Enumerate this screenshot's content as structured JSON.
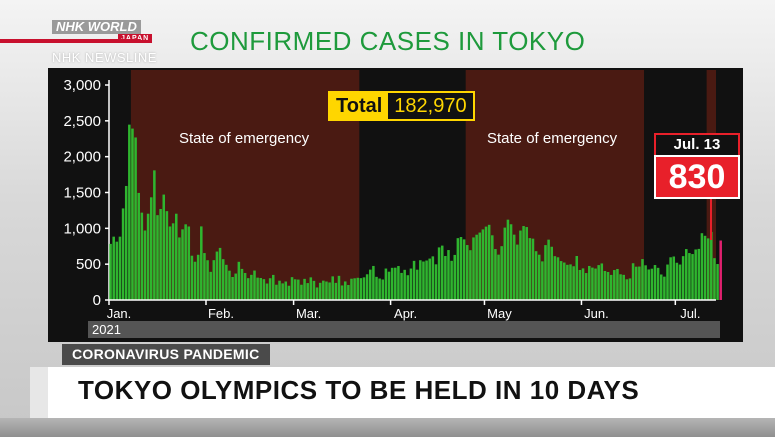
{
  "broadcaster": {
    "logo_text": "NHK WORLD",
    "logo_sub": "JAPAN",
    "program": "NHK NEWSLINE"
  },
  "total": {
    "label": "Total",
    "value": "182,970"
  },
  "annotations": {
    "emergency_1": "State of emergency",
    "emergency_2": "State of emergency"
  },
  "callout": {
    "date": "Jul. 13",
    "value": "830"
  },
  "topic": "CORONAVIRUS PANDEMIC",
  "headline": "TOKYO OLYMPICS TO BE HELD IN 10 DAYS",
  "colors": {
    "bar": "#2fb52f",
    "bar_highlight": "#e0206e",
    "emergency_shade": "#4a1a12",
    "title": "#1e9a3c",
    "callout": "#e8202a"
  },
  "chart_data": {
    "type": "bar",
    "title": "CONFIRMED CASES IN TOKYO",
    "year_label": "2021",
    "ylim": [
      0,
      3000
    ],
    "y_ticks": [
      "3,000",
      "2,500",
      "2,000",
      "1,500",
      "1,000",
      "500",
      "0"
    ],
    "x_ticks": [
      "Jan.",
      "Feb.",
      "Mar.",
      "Apr.",
      "May",
      "Jun.",
      "Jul."
    ],
    "x_range_days": [
      1,
      194
    ],
    "emergency_periods": [
      [
        8,
        80
      ],
      [
        115,
        171
      ],
      [
        192,
        194
      ]
    ],
    "series": [
      {
        "values": [
          783,
          884,
          814,
          884,
          1278,
          1591,
          2447,
          2392,
          2268,
          1494,
          1219,
          970,
          1204,
          1433,
          1809,
          1184,
          1270,
          1471,
          1240,
          1026,
          1070,
          1204,
          873,
          986,
          1056,
          1026,
          618,
          534,
          631,
          1027,
          655,
          555,
          393,
          556,
          676,
          727,
          570,
          491,
          409,
          321,
          369,
          533,
          434,
          377,
          305,
          351,
          411,
          312,
          307,
          291,
          230,
          304,
          350,
          213,
          269,
          232,
          258,
          199,
          319,
          289,
          285,
          213,
          295,
          236,
          316,
          267,
          175,
          240,
          270,
          258,
          245,
          330,
          239,
          337,
          203,
          259,
          209,
          297,
          303,
          310,
          305,
          316,
          359,
          424,
          475,
          323,
          300,
          286,
          439,
          395,
          449,
          451,
          474,
          378,
          421,
          346,
          439,
          546,
          423,
          555,
          537,
          551,
          578,
          609,
          498,
          734,
          759,
          614,
          697,
          547,
          629,
          863,
          879,
          846,
          767,
          695,
          873,
          911,
          941,
          985,
          1024,
          1049,
          903,
          711,
          633,
          751,
          1010,
          1121,
          1057,
          912,
          773,
          969,
          1032,
          1018,
          864,
          856,
          681,
          632,
          539,
          766,
          842,
          743,
          612,
          596,
          543,
          523,
          491,
          497,
          471,
          614,
          419,
          441,
          376,
          475,
          452,
          439,
          487,
          510,
          405,
          391,
          350,
          418,
          433,
          359,
          351,
          289,
          301,
          513,
          465,
          467,
          571,
          484,
          426,
          437,
          488,
          449,
          356,
          326,
          495,
          596,
          607,
          520,
          495,
          612,
          711,
          655,
          641,
          705,
          713,
          932,
          896,
          860,
          950,
          584,
          502,
          830
        ]
      }
    ]
  }
}
